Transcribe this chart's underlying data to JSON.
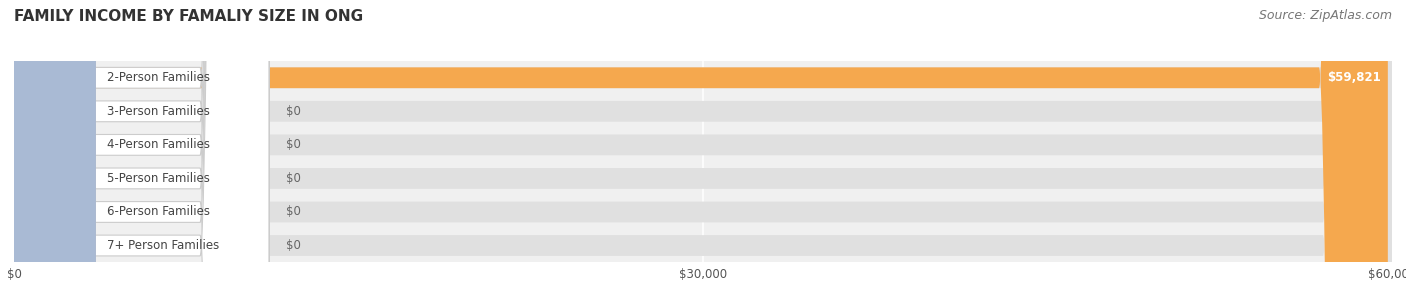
{
  "title": "FAMILY INCOME BY FAMALIY SIZE IN ONG",
  "source": "Source: ZipAtlas.com",
  "categories": [
    "2-Person Families",
    "3-Person Families",
    "4-Person Families",
    "5-Person Families",
    "6-Person Families",
    "7+ Person Families"
  ],
  "values": [
    59821,
    0,
    0,
    0,
    0,
    0
  ],
  "bar_colors": [
    "#f5a84e",
    "#e8a0a8",
    "#a8c0e0",
    "#c8a8d8",
    "#88c8c8",
    "#b0b8d8"
  ],
  "value_labels": [
    "$59,821",
    "$0",
    "$0",
    "$0",
    "$0",
    "$0"
  ],
  "xlim": [
    0,
    60000
  ],
  "xticks": [
    0,
    30000,
    60000
  ],
  "xticklabels": [
    "$0",
    "$30,000",
    "$60,000"
  ],
  "title_fontsize": 11,
  "source_fontsize": 9,
  "label_fontsize": 8.5,
  "value_fontsize": 8.5,
  "bar_height": 0.62,
  "fig_width": 14.06,
  "fig_height": 3.05
}
